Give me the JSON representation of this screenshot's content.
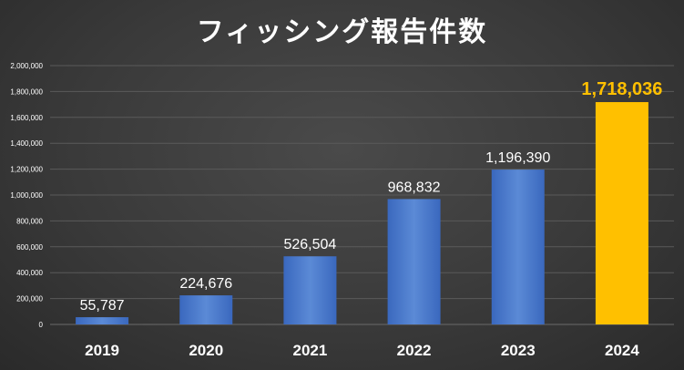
{
  "chart_data": {
    "type": "bar",
    "title": "フィッシング報告件数",
    "categories": [
      "2019",
      "2020",
      "2021",
      "2022",
      "2023",
      "2024"
    ],
    "values": [
      55787,
      224676,
      526504,
      968832,
      1196390,
      1718036
    ],
    "value_labels": [
      "55,787",
      "224,676",
      "526,504",
      "968,832",
      "1,196,390",
      "1,718,036"
    ],
    "ylim": [
      0,
      2000000
    ],
    "y_ticks": [
      "0",
      "200,000",
      "400,000",
      "600,000",
      "800,000",
      "1,000,000",
      "1,200,000",
      "1,400,000",
      "1,600,000",
      "1,800,000",
      "2,000,000"
    ],
    "grid": true,
    "colors": {
      "bar": "#4472c4",
      "highlight_bar": "#ffc000",
      "highlight_label": "#ffc000",
      "label": "#ffffff",
      "grid": "#5a5a5a",
      "axis_text": "#ffffff"
    },
    "highlight_index": 5
  }
}
